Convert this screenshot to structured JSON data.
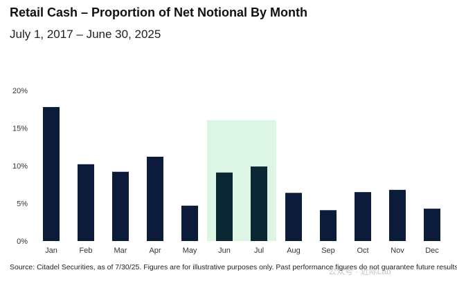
{
  "title": "Retail Cash – Proportion of Net Notional By Month",
  "subtitle": "July 1, 2017 – June 30, 2025",
  "source": "Source: Citadel Securities, as of 7/30/25. Figures are for illustrative purposes only. Past performance figures do not guarantee future results.",
  "watermark": "公众号 · 近际Lab",
  "colors": {
    "bar": "#0d1b3a",
    "highlight_bar": "#0b2733",
    "highlight_band": "#dcf5e4"
  },
  "chart_data": {
    "type": "bar",
    "title": "Retail Cash – Proportion of Net Notional By Month",
    "subtitle": "July 1, 2017 – June 30, 2025",
    "xlabel": "",
    "ylabel": "",
    "categories": [
      "Jan",
      "Feb",
      "Mar",
      "Apr",
      "May",
      "Jun",
      "Jul",
      "Aug",
      "Sep",
      "Oct",
      "Nov",
      "Dec"
    ],
    "values": [
      17.8,
      10.2,
      9.2,
      11.2,
      4.7,
      9.1,
      9.9,
      6.4,
      4.1,
      6.5,
      6.8,
      4.3
    ],
    "ylim": [
      0,
      20
    ],
    "yticks": [
      0,
      5,
      10,
      15,
      20
    ],
    "ytick_labels": [
      "0%",
      "5%",
      "10%",
      "15%",
      "20%"
    ],
    "value_unit": "%",
    "highlight_categories": [
      "Jun",
      "Jul"
    ],
    "grid": false,
    "legend": "none"
  }
}
